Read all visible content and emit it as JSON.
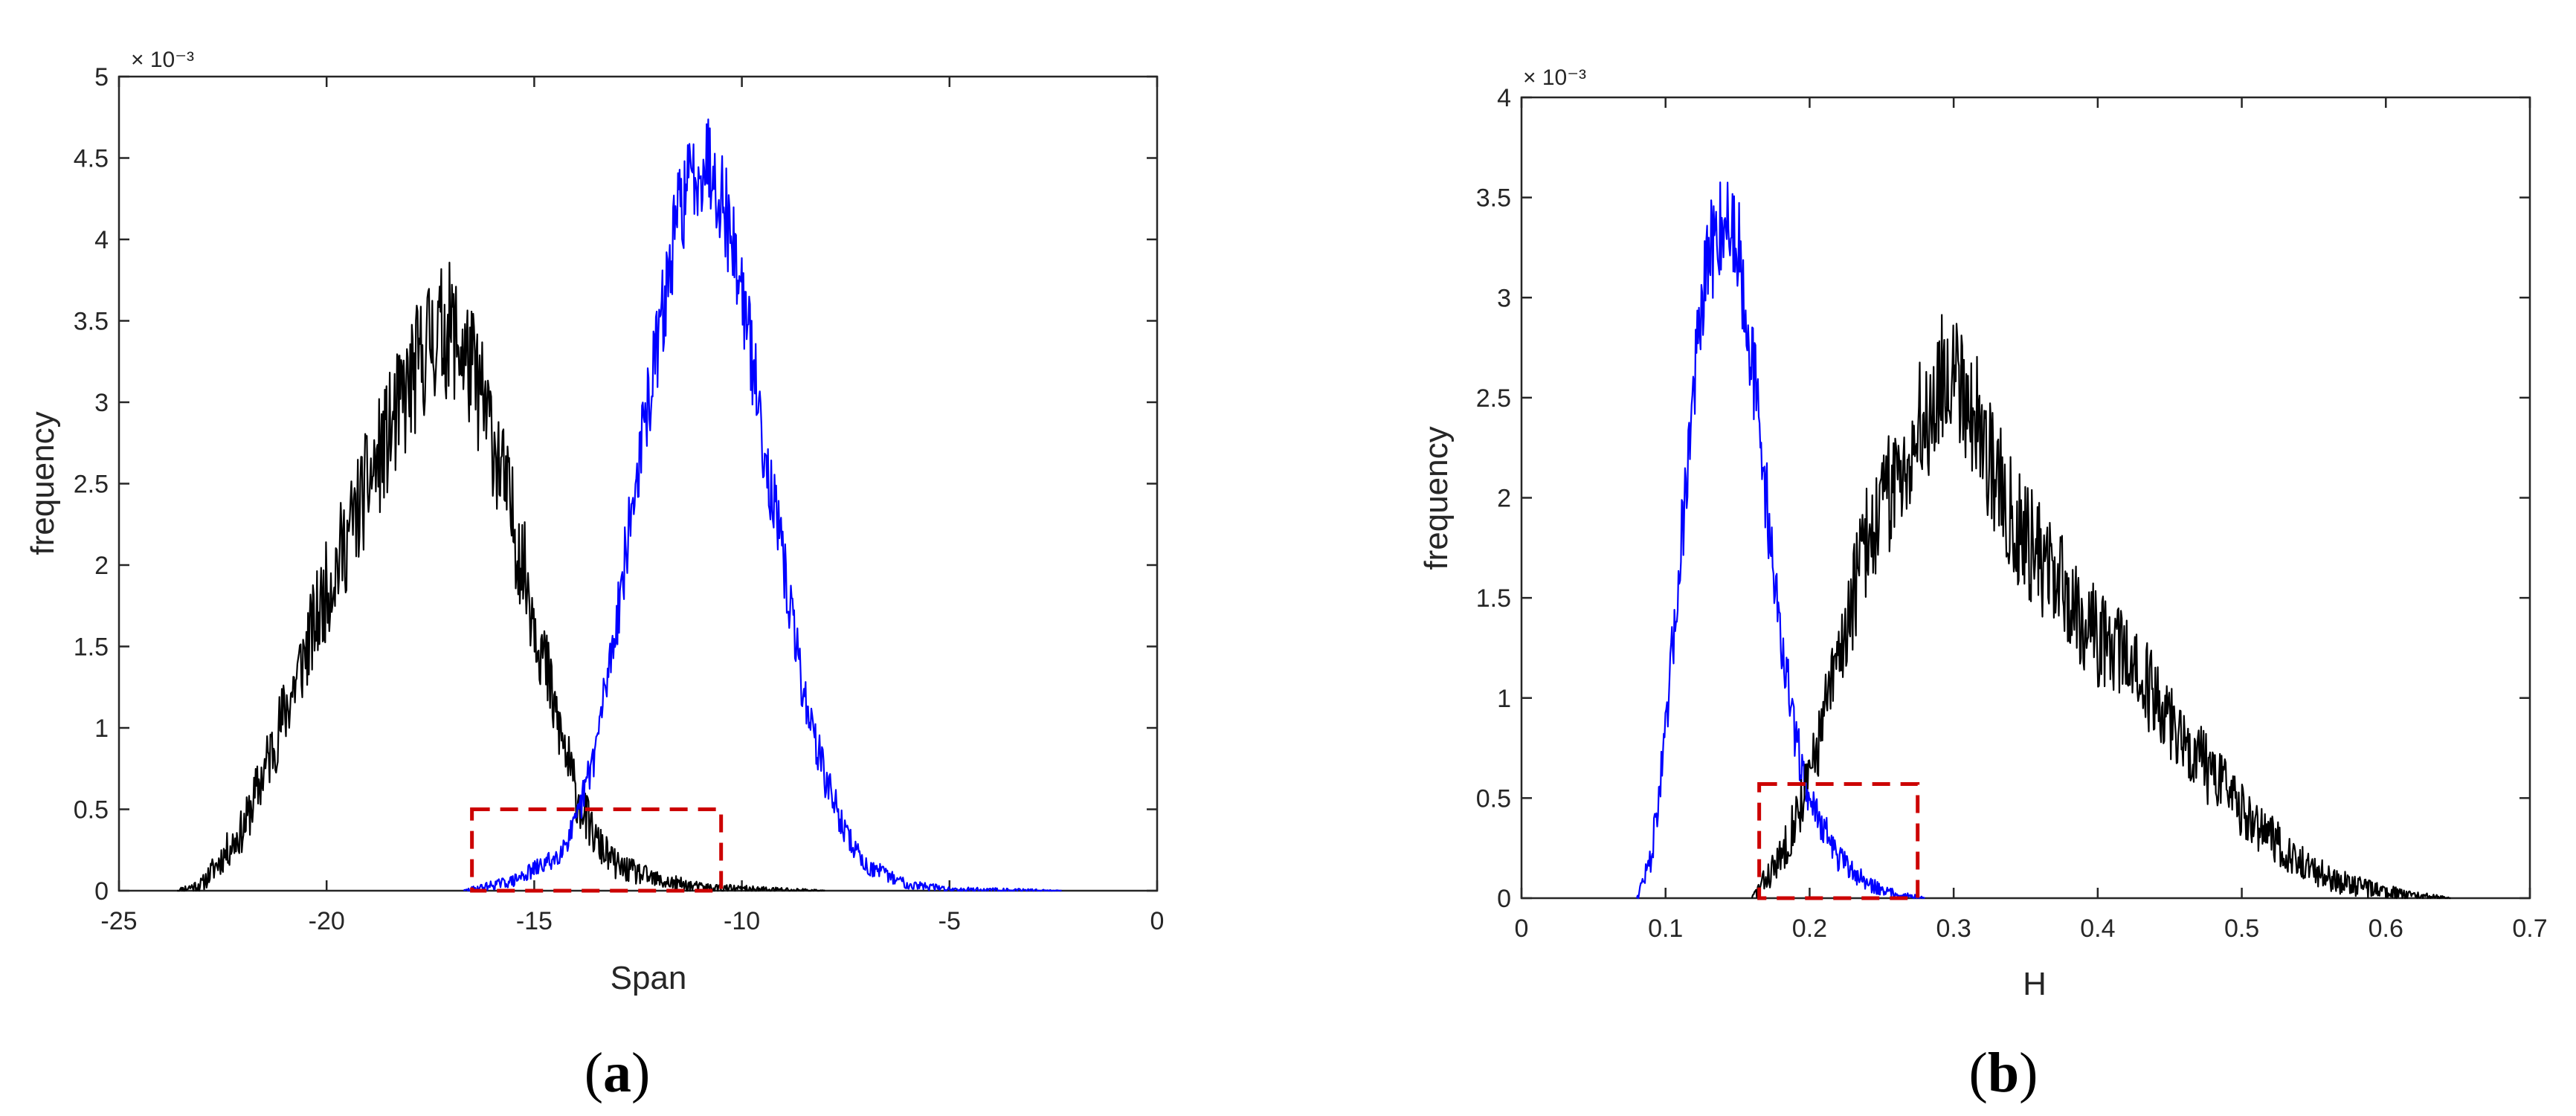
{
  "chart_data": [
    {
      "type": "line",
      "panel_label": "a",
      "xlabel": "Span",
      "ylabel": "frequency",
      "y_exponent_label": "× 10⁻³",
      "xlim": [
        -25,
        0
      ],
      "ylim": [
        0,
        0.005
      ],
      "xticks": [
        -25,
        -20,
        -15,
        -10,
        -5,
        0
      ],
      "yticks": [
        0,
        0.0005,
        0.001,
        0.0015,
        0.002,
        0.0025,
        0.003,
        0.0035,
        0.004,
        0.0045,
        0.005
      ],
      "ytick_labels": [
        "0",
        "0.5",
        "1",
        "1.5",
        "2",
        "2.5",
        "3",
        "3.5",
        "4",
        "4.5",
        "5"
      ],
      "grid": false,
      "series": [
        {
          "color": "#000000",
          "noise": 0.00042,
          "seed": 11,
          "points": [
            [
              -23.6,
              0
            ],
            [
              -23,
              4e-05
            ],
            [
              -22,
              0.00038
            ],
            [
              -21,
              0.0011
            ],
            [
              -20,
              0.00185
            ],
            [
              -19,
              0.0025
            ],
            [
              -18,
              0.0031
            ],
            [
              -17.5,
              0.0034
            ],
            [
              -17,
              0.00345
            ],
            [
              -16.5,
              0.0032
            ],
            [
              -16,
              0.0028
            ],
            [
              -15,
              0.0017
            ],
            [
              -14.5,
              0.0011
            ],
            [
              -14,
              0.0006
            ],
            [
              -13.5,
              0.0003
            ],
            [
              -13,
              0.00015
            ],
            [
              -12,
              6e-05
            ],
            [
              -11,
              2e-05
            ],
            [
              -10,
              1e-05
            ],
            [
              -8,
              0
            ]
          ]
        },
        {
          "color": "#0000ff",
          "noise": 0.00028,
          "seed": 29,
          "points": [
            [
              -16.7,
              0
            ],
            [
              -15.5,
              6e-05
            ],
            [
              -14.5,
              0.0002
            ],
            [
              -14,
              0.0004
            ],
            [
              -13.5,
              0.0009
            ],
            [
              -13,
              0.0017
            ],
            [
              -12.5,
              0.0026
            ],
            [
              -12,
              0.0034
            ],
            [
              -11.5,
              0.0042
            ],
            [
              -11,
              0.00448
            ],
            [
              -10.8,
              0.0045
            ],
            [
              -10.5,
              0.0043
            ],
            [
              -10,
              0.0037
            ],
            [
              -9.5,
              0.0028
            ],
            [
              -9,
              0.002
            ],
            [
              -8.5,
              0.0012
            ],
            [
              -8,
              0.0007
            ],
            [
              -7.5,
              0.00035
            ],
            [
              -7,
              0.00015
            ],
            [
              -6,
              4e-05
            ],
            [
              -5,
              1e-05
            ],
            [
              -2.3,
              0
            ]
          ]
        }
      ],
      "highlight_box": {
        "x0": -16.5,
        "x1": -10.5,
        "y0": 0,
        "y1": 0.0005,
        "color": "#cc0000"
      }
    },
    {
      "type": "line",
      "panel_label": "b",
      "xlabel": "H",
      "ylabel": "frequency",
      "y_exponent_label": "× 10⁻³",
      "xlim": [
        0,
        0.7
      ],
      "ylim": [
        0,
        0.004
      ],
      "xticks": [
        0,
        0.1,
        0.2,
        0.3,
        0.4,
        0.5,
        0.6,
        0.7
      ],
      "yticks": [
        0,
        0.0005,
        0.001,
        0.0015,
        0.002,
        0.0025,
        0.003,
        0.0035,
        0.004
      ],
      "ytick_labels": [
        "0",
        "0.5",
        "1",
        "1.5",
        "2",
        "2.5",
        "3",
        "3.5",
        "4"
      ],
      "grid": false,
      "series": [
        {
          "color": "#0000ff",
          "noise": 0.00025,
          "seed": 47,
          "points": [
            [
              0.08,
              0
            ],
            [
              0.09,
              0.0002
            ],
            [
              0.1,
              0.0008
            ],
            [
              0.11,
              0.0017
            ],
            [
              0.12,
              0.0026
            ],
            [
              0.13,
              0.0032
            ],
            [
              0.14,
              0.0034
            ],
            [
              0.15,
              0.0033
            ],
            [
              0.16,
              0.0027
            ],
            [
              0.17,
              0.002
            ],
            [
              0.18,
              0.0013
            ],
            [
              0.19,
              0.0008
            ],
            [
              0.2,
              0.0005
            ],
            [
              0.22,
              0.0002
            ],
            [
              0.24,
              7e-05
            ],
            [
              0.26,
              2e-05
            ],
            [
              0.28,
              0
            ]
          ]
        },
        {
          "color": "#000000",
          "noise": 0.00036,
          "seed": 83,
          "points": [
            [
              0.16,
              0
            ],
            [
              0.18,
              0.0002
            ],
            [
              0.2,
              0.0006
            ],
            [
              0.22,
              0.0012
            ],
            [
              0.24,
              0.0018
            ],
            [
              0.26,
              0.0021
            ],
            [
              0.28,
              0.0024
            ],
            [
              0.3,
              0.0027
            ],
            [
              0.32,
              0.0023
            ],
            [
              0.34,
              0.0019
            ],
            [
              0.36,
              0.0017
            ],
            [
              0.38,
              0.0015
            ],
            [
              0.4,
              0.0013
            ],
            [
              0.42,
              0.0012
            ],
            [
              0.44,
              0.001
            ],
            [
              0.46,
              0.0008
            ],
            [
              0.48,
              0.0006
            ],
            [
              0.5,
              0.00045
            ],
            [
              0.52,
              0.0003
            ],
            [
              0.54,
              0.00018
            ],
            [
              0.56,
              0.0001
            ],
            [
              0.58,
              6e-05
            ],
            [
              0.6,
              3e-05
            ],
            [
              0.62,
              1e-05
            ],
            [
              0.645,
              0
            ]
          ]
        }
      ],
      "highlight_box": {
        "x0": 0.165,
        "x1": 0.275,
        "y0": 0,
        "y1": 0.00057,
        "color": "#cc0000"
      }
    }
  ]
}
